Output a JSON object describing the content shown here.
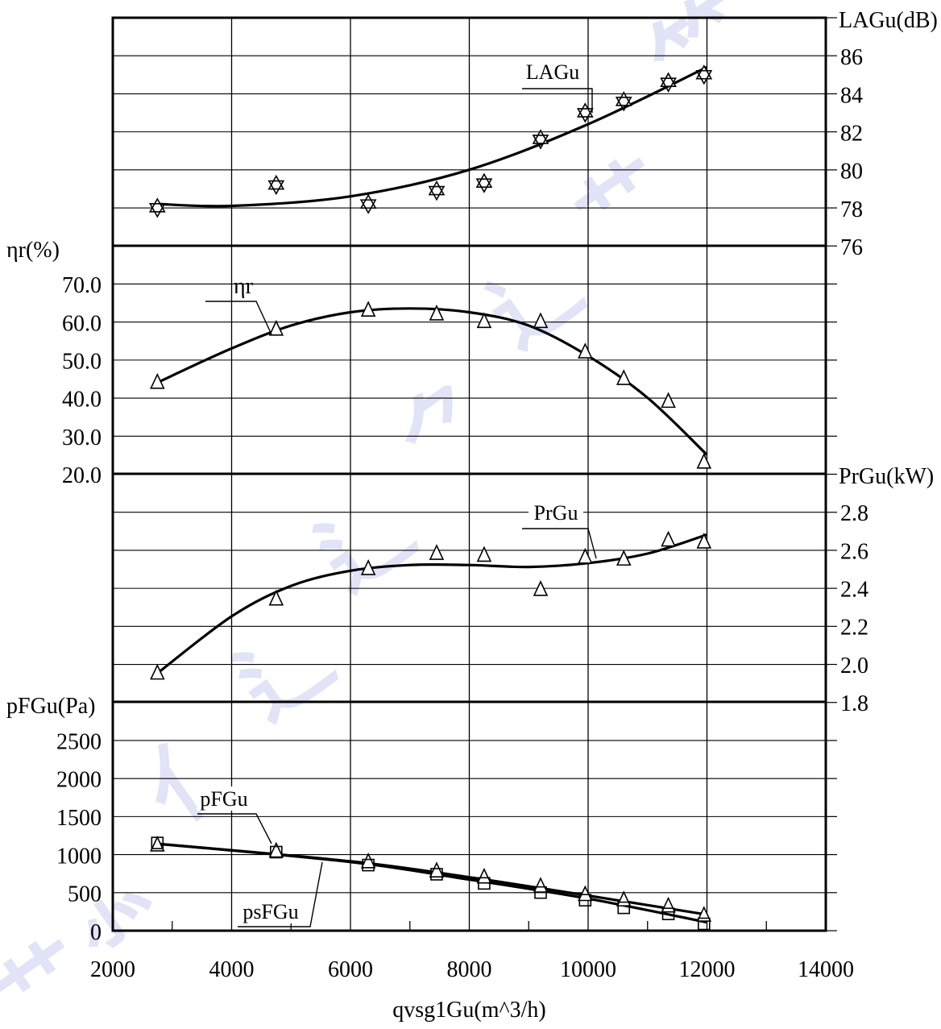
{
  "chart_data": {
    "type": "scatter",
    "x_axis": {
      "label": "qvsg1Gu(m^3/h)",
      "range": [
        2000,
        14000
      ],
      "ticks": [
        "2000",
        "4000",
        "6000",
        "8000",
        "10000",
        "12000",
        "14000"
      ]
    },
    "panels": [
      {
        "id": "LAGu",
        "axis_side": "right",
        "axis_label": "LAGu(dB)",
        "range": [
          76,
          88
        ],
        "ticks": [
          "76",
          "78",
          "80",
          "82",
          "84",
          "86"
        ],
        "series": [
          {
            "name": "LAGu",
            "marker": "star",
            "points": [
              [
                2750,
                78.0
              ],
              [
                4750,
                79.2
              ],
              [
                6300,
                78.2
              ],
              [
                7450,
                78.9
              ],
              [
                8250,
                79.3
              ],
              [
                9200,
                81.6
              ],
              [
                9950,
                83.0
              ],
              [
                10600,
                83.6
              ],
              [
                11350,
                84.6
              ],
              [
                11950,
                85.0
              ]
            ],
            "fit_curve": [
              [
                2750,
                78.2
              ],
              [
                4000,
                78.1
              ],
              [
                6000,
                78.6
              ],
              [
                8000,
                80.0
              ],
              [
                10000,
                82.4
              ],
              [
                12000,
                85.4
              ]
            ]
          }
        ]
      },
      {
        "id": "eta_r",
        "axis_side": "left",
        "axis_label": "ηr(%)",
        "range": [
          20,
          80
        ],
        "ticks": [
          "20.0",
          "30.0",
          "40.0",
          "50.0",
          "60.0",
          "70.0"
        ],
        "series": [
          {
            "name": "ηr",
            "marker": "triangle",
            "points": [
              [
                2750,
                44
              ],
              [
                4750,
                58
              ],
              [
                6300,
                63
              ],
              [
                7450,
                62
              ],
              [
                8250,
                60
              ],
              [
                9200,
                60
              ],
              [
                9950,
                52
              ],
              [
                10600,
                45
              ],
              [
                11350,
                39
              ],
              [
                11950,
                23
              ]
            ],
            "fit_curve": [
              [
                2750,
                44
              ],
              [
                4000,
                53
              ],
              [
                5000,
                59
              ],
              [
                6000,
                62.5
              ],
              [
                7000,
                63.5
              ],
              [
                8000,
                62.5
              ],
              [
                9000,
                59
              ],
              [
                10000,
                51
              ],
              [
                11000,
                40
              ],
              [
                12000,
                25
              ]
            ]
          }
        ]
      },
      {
        "id": "PrGu",
        "axis_side": "right",
        "axis_label": "PrGu(kW)",
        "range": [
          1.8,
          3.0
        ],
        "ticks": [
          "1.8",
          "2.0",
          "2.2",
          "2.4",
          "2.6",
          "2.8"
        ],
        "series": [
          {
            "name": "PrGu",
            "marker": "triangle",
            "points": [
              [
                2750,
                1.95
              ],
              [
                4750,
                2.34
              ],
              [
                6300,
                2.5
              ],
              [
                7450,
                2.58
              ],
              [
                8250,
                2.57
              ],
              [
                9200,
                2.39
              ],
              [
                9950,
                2.56
              ],
              [
                10600,
                2.55
              ],
              [
                11350,
                2.65
              ],
              [
                11950,
                2.64
              ]
            ],
            "fit_curve": [
              [
                2750,
                1.95
              ],
              [
                4000,
                2.25
              ],
              [
                5000,
                2.41
              ],
              [
                6000,
                2.49
              ],
              [
                7000,
                2.52
              ],
              [
                8000,
                2.52
              ],
              [
                9000,
                2.51
              ],
              [
                10000,
                2.53
              ],
              [
                11000,
                2.58
              ],
              [
                12000,
                2.68
              ]
            ]
          }
        ]
      },
      {
        "id": "pFGu",
        "axis_side": "left",
        "axis_label": "pFGu(Pa)",
        "range": [
          0,
          3000
        ],
        "ticks": [
          "0",
          "500",
          "1000",
          "1500",
          "2000",
          "2500"
        ],
        "series": [
          {
            "name": "pFGu",
            "marker": "triangle",
            "points": [
              [
                2750,
                1120
              ],
              [
                4750,
                1040
              ],
              [
                6300,
                900
              ],
              [
                7450,
                780
              ],
              [
                8250,
                700
              ],
              [
                9200,
                580
              ],
              [
                9950,
                470
              ],
              [
                10600,
                400
              ],
              [
                11350,
                320
              ],
              [
                11950,
                200
              ]
            ],
            "fit_curve": [
              [
                2750,
                1140
              ],
              [
                6000,
                910
              ],
              [
                8000,
                700
              ],
              [
                10000,
                460
              ],
              [
                12000,
                210
              ]
            ]
          },
          {
            "name": "psFGu",
            "marker": "square",
            "points": [
              [
                2750,
                1150
              ],
              [
                4750,
                1030
              ],
              [
                6300,
                860
              ],
              [
                7450,
                740
              ],
              [
                8250,
                620
              ],
              [
                9200,
                500
              ],
              [
                9950,
                400
              ],
              [
                10600,
                300
              ],
              [
                11350,
                220
              ],
              [
                11950,
                90
              ]
            ],
            "fit_curve": [
              [
                2750,
                1140
              ],
              [
                6000,
                900
              ],
              [
                8000,
                670
              ],
              [
                10000,
                420
              ],
              [
                12000,
                110
              ]
            ]
          }
        ]
      }
    ]
  }
}
